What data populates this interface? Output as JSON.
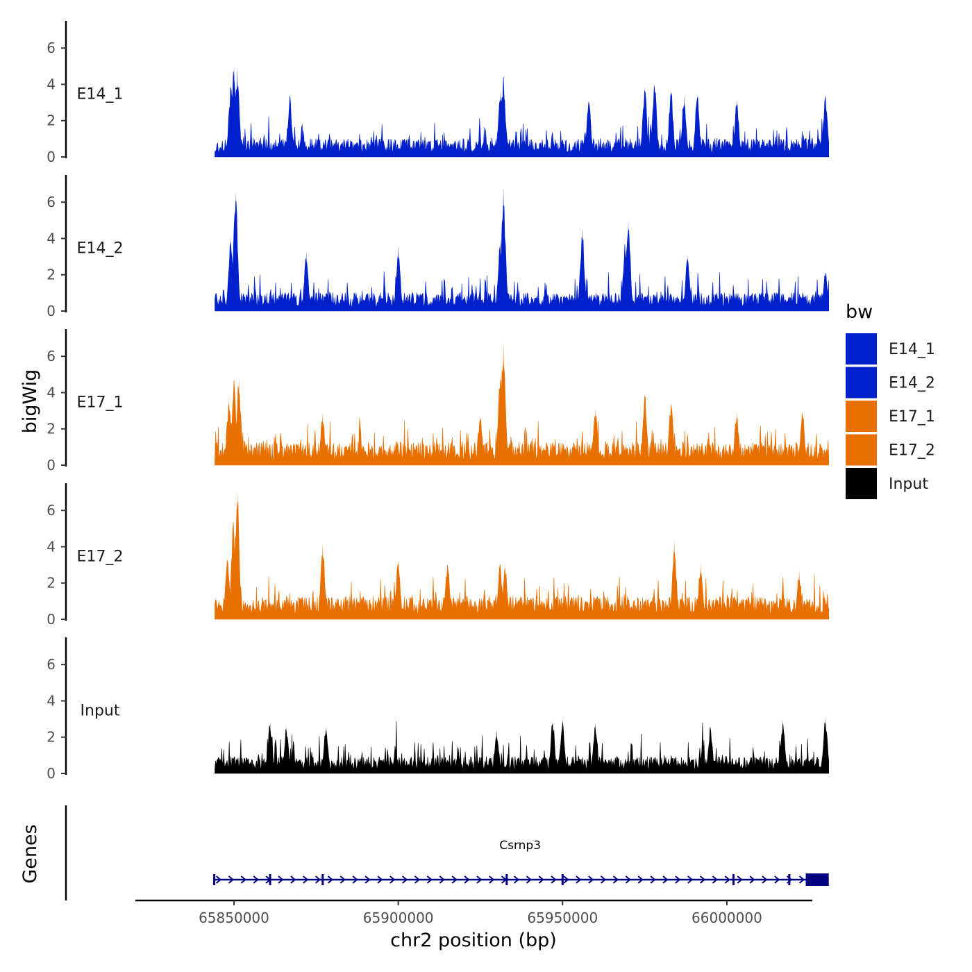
{
  "chart_data": {
    "type": "area",
    "title": "",
    "ylabel": "bigWig",
    "genes_label": "Genes",
    "xlabel": "chr2 position (bp)",
    "xlim": [
      65820000,
      66026000
    ],
    "data_x_range": [
      65844200,
      66031000
    ],
    "ylim": [
      0,
      7.5
    ],
    "y_ticks": [
      0,
      2,
      4,
      6
    ],
    "x_ticks": [
      {
        "value": 65850000,
        "label": "65850000"
      },
      {
        "value": 65900000,
        "label": "65900000"
      },
      {
        "value": 65950000,
        "label": "65950000"
      },
      {
        "value": 66000000,
        "label": "66000000"
      }
    ],
    "legend": {
      "title": "bw",
      "position": "right",
      "items": [
        {
          "label": "E14_1",
          "color": "#0020CC"
        },
        {
          "label": "E14_2",
          "color": "#0020CC"
        },
        {
          "label": "E17_1",
          "color": "#E87000"
        },
        {
          "label": "E17_2",
          "color": "#E87000"
        },
        {
          "label": "Input",
          "color": "#000000"
        }
      ]
    },
    "tracks": [
      {
        "name": "E14_1",
        "label": "E14_1",
        "color": "#0020CC",
        "peaks": [
          [
            65850000,
            5.0
          ],
          [
            65851000,
            4.9
          ],
          [
            65849000,
            3.9
          ],
          [
            65867000,
            3.4
          ],
          [
            65932000,
            4.5
          ],
          [
            65931000,
            3.6
          ],
          [
            65958000,
            3.1
          ],
          [
            65975000,
            3.9
          ],
          [
            65978000,
            4.1
          ],
          [
            65983000,
            3.7
          ],
          [
            65987000,
            3.4
          ],
          [
            65991000,
            3.5
          ],
          [
            66003000,
            3.2
          ],
          [
            66030000,
            3.5
          ]
        ]
      },
      {
        "name": "E14_2",
        "label": "E14_2",
        "color": "#0020CC",
        "peaks": [
          [
            65850500,
            6.6
          ],
          [
            65849000,
            4.1
          ],
          [
            65872000,
            3.3
          ],
          [
            65900000,
            3.6
          ],
          [
            65932000,
            6.8
          ],
          [
            65931000,
            4.0
          ],
          [
            65956000,
            4.6
          ],
          [
            65970000,
            5.0
          ],
          [
            65969000,
            3.7
          ],
          [
            65988000,
            3.1
          ],
          [
            66030000,
            2.2
          ]
        ]
      },
      {
        "name": "E17_1",
        "label": "E17_1",
        "color": "#E87000",
        "peaks": [
          [
            65850000,
            4.7
          ],
          [
            65851500,
            4.8
          ],
          [
            65848500,
            3.8
          ],
          [
            65877000,
            2.9
          ],
          [
            65925000,
            2.7
          ],
          [
            65932000,
            6.8
          ],
          [
            65931000,
            5.1
          ],
          [
            65960000,
            3.1
          ],
          [
            65975000,
            4.0
          ],
          [
            65983000,
            3.5
          ],
          [
            66003000,
            3.0
          ],
          [
            66023000,
            3.0
          ]
        ]
      },
      {
        "name": "E17_2",
        "label": "E17_2",
        "color": "#E87000",
        "peaks": [
          [
            65851000,
            7.1
          ],
          [
            65849800,
            5.4
          ],
          [
            65848000,
            3.3
          ],
          [
            65877000,
            4.2
          ],
          [
            65900000,
            3.3
          ],
          [
            65915000,
            3.1
          ],
          [
            65931000,
            3.1
          ],
          [
            65932500,
            3.0
          ],
          [
            65984000,
            4.4
          ],
          [
            65992000,
            3.1
          ],
          [
            66022000,
            2.7
          ]
        ]
      },
      {
        "name": "Input",
        "label": "Input",
        "color": "#000000",
        "peaks": [
          [
            65861000,
            2.8
          ],
          [
            65866000,
            2.6
          ],
          [
            65878000,
            2.6
          ],
          [
            65930000,
            2.4
          ],
          [
            65947000,
            2.9
          ],
          [
            65950000,
            3.0
          ],
          [
            65960000,
            2.8
          ],
          [
            65995000,
            2.6
          ],
          [
            66017000,
            3.0
          ],
          [
            66030000,
            3.1
          ]
        ]
      }
    ],
    "gene": {
      "name": "Csrnp3",
      "strand": "+",
      "start": 65844000,
      "end": 66031000,
      "thick_start": 66024000,
      "exons": [
        65844000,
        65861000,
        65877000,
        65933000,
        65950000,
        66002000,
        66019000
      ]
    }
  }
}
